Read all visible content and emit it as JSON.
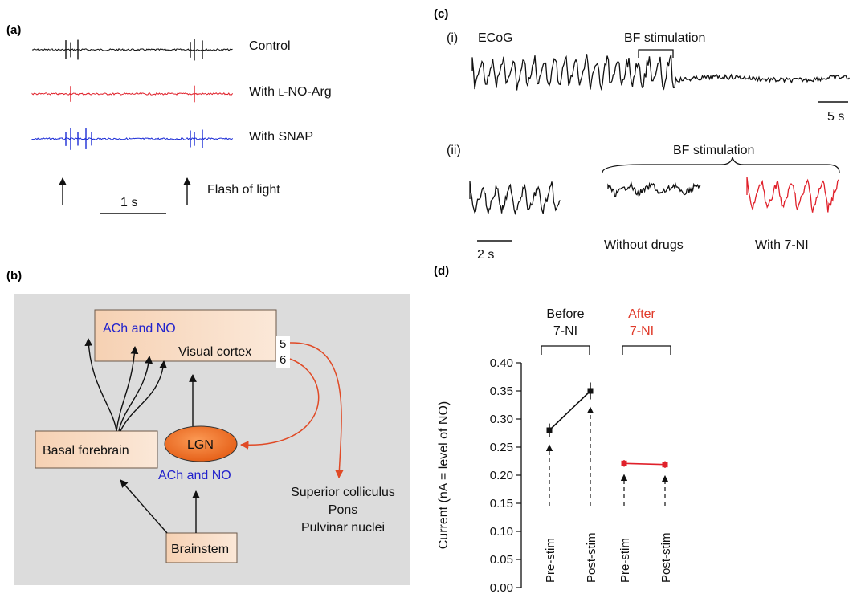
{
  "panels": {
    "a": {
      "label": "(a)",
      "traces": [
        {
          "name": "Control",
          "color": "#111111",
          "spike_times_s": [
            0.3,
            0.36,
            0.45,
            1.85,
            1.9,
            2.0
          ]
        },
        {
          "name": "With L-NO-Arg",
          "name_parts": [
            "With ",
            "L",
            "-NO-Arg"
          ],
          "color": "#e0202a",
          "spike_times_s": [
            0.36,
            1.9
          ]
        },
        {
          "name": "With SNAP",
          "color": "#1a2bd6",
          "spike_times_s": [
            0.3,
            0.36,
            0.45,
            0.55,
            0.62,
            1.85,
            1.9,
            2.0
          ]
        }
      ],
      "flash_times_s": [
        0.3,
        1.85
      ],
      "flash_label": "Flash of light",
      "scale_bar": "1 s"
    },
    "b": {
      "label": "(b)",
      "background": "#dcdcdc",
      "visual_cortex": "Visual cortex",
      "ach_no_top": "ACh and NO",
      "layer_5": "5",
      "layer_6": "6",
      "basal_forebrain": "Basal forebrain",
      "lgn": "LGN",
      "ach_no_lgn": "ACh and NO",
      "brainstem": "Brainstem",
      "targets": [
        "Superior colliculus",
        "Pons",
        "Pulvinar nuclei"
      ],
      "colors": {
        "pathway_red": "#e04a26",
        "text_blue": "#2222cc",
        "lgn_fill": "#ef6a22",
        "box_fill": "#f5c9a6"
      }
    },
    "c": {
      "label": "(c)",
      "sub_i": "(i)",
      "ecog": "ECoG",
      "bf_stim_i": "BF stimulation",
      "scale_i": "5 s",
      "sub_ii": "(ii)",
      "bf_stim_ii": "BF stimulation",
      "without_drugs": "Without drugs",
      "with_7ni": "With 7-NI",
      "scale_ii": "2 s",
      "trace_red": "#e0202a"
    },
    "d": {
      "label": "(d)",
      "group_before": "Before\n7-NI",
      "group_after": "After\n7-NI",
      "group_before_lines": [
        "Before",
        "7-NI"
      ],
      "group_after_lines": [
        "After",
        "7-NI"
      ],
      "before_color": "#111111",
      "after_color": "#e0202a"
    }
  },
  "chart_data": {
    "type": "line",
    "ylabel": "Current (nA = level of NO)",
    "ylim": [
      0,
      0.4
    ],
    "yticks": [
      "0.00",
      "0.05",
      "0.10",
      "0.15",
      "0.20",
      "0.25",
      "0.30",
      "0.35",
      "0.40"
    ],
    "categories": [
      "Pre-stim",
      "Post-stim",
      "Pre-stim",
      "Post-stim"
    ],
    "series": [
      {
        "name": "Before 7-NI",
        "x": [
          "Pre-stim",
          "Post-stim"
        ],
        "values": [
          0.28,
          0.35
        ],
        "errors": [
          0.012,
          0.015
        ],
        "color": "#111111"
      },
      {
        "name": "After 7-NI",
        "x": [
          "Pre-stim",
          "Post-stim"
        ],
        "values": [
          0.221,
          0.219
        ],
        "errors": [
          0.006,
          0.006
        ],
        "color": "#e0202a"
      }
    ]
  }
}
